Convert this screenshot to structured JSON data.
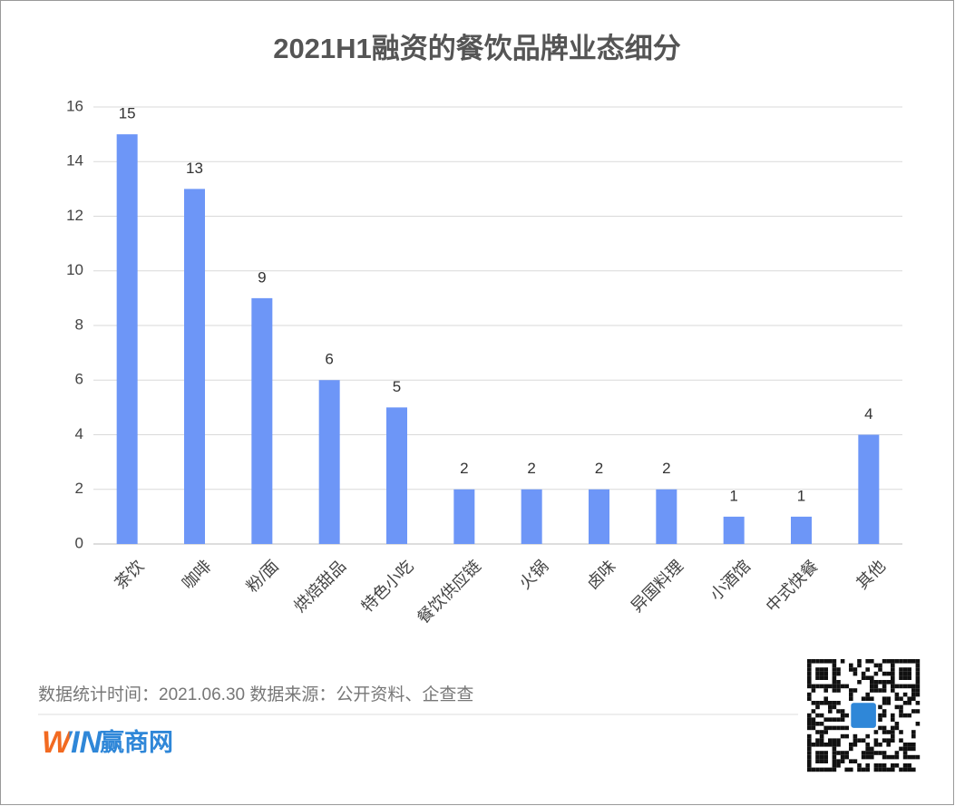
{
  "chart_data": {
    "type": "bar",
    "title": "2021H1融资的餐饮品牌业态细分",
    "categories": [
      "茶饮",
      "咖啡",
      "粉/面",
      "烘焙甜品",
      "特色小吃",
      "餐饮供应链",
      "火锅",
      "卤味",
      "异国料理",
      "小酒馆",
      "中式快餐",
      "其他"
    ],
    "values": [
      15,
      13,
      9,
      6,
      5,
      2,
      2,
      2,
      2,
      1,
      1,
      4
    ],
    "color": "#6d96f7",
    "ylim": [
      0,
      16
    ],
    "yticks": [
      0,
      2,
      4,
      6,
      8,
      10,
      12,
      14,
      16
    ],
    "grid": true
  },
  "footer": {
    "note": "数据统计时间：2021.06.30  数据来源：公开资料、企查查",
    "logo_mark": "WIN",
    "logo_text": "赢商网"
  }
}
